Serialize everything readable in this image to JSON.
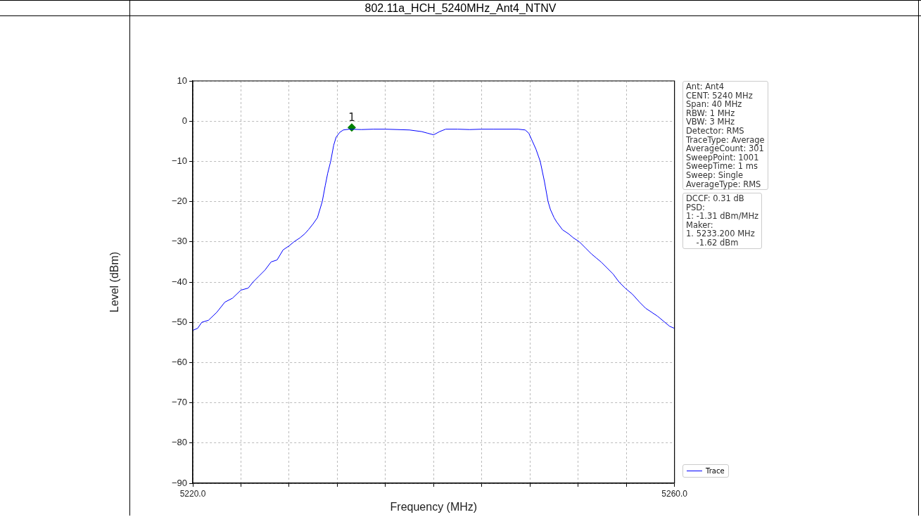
{
  "chart_data": {
    "type": "line",
    "title": "802.11a_HCH_5240MHz_Ant4_NTNV",
    "xlabel": "Frequency (MHz)",
    "ylabel": "Level (dBm)",
    "xlim": [
      5220,
      5260
    ],
    "xticks": [
      {
        "value": 5220,
        "label": "5220.0"
      },
      {
        "value": 5224,
        "label": null
      },
      {
        "value": 5228,
        "label": null
      },
      {
        "value": 5232,
        "label": null
      },
      {
        "value": 5236,
        "label": null
      },
      {
        "value": 5240,
        "label": null
      },
      {
        "value": 5244,
        "label": null
      },
      {
        "value": 5248,
        "label": null
      },
      {
        "value": 5252,
        "label": null
      },
      {
        "value": 5256,
        "label": null
      },
      {
        "value": 5260,
        "label": "5260.0"
      }
    ],
    "ylim": [
      -90,
      10
    ],
    "yticks": [
      10,
      0,
      -10,
      -20,
      -30,
      -40,
      -50,
      -60,
      -70,
      -80,
      -90
    ],
    "grid": true,
    "legend": "bottom right",
    "line_style": "solid",
    "marker": "none",
    "series": [
      {
        "name": "Trace",
        "color": "#0000ff",
        "x": [
          5220,
          5220.4,
          5220.75,
          5221.3,
          5222,
          5222.66,
          5223.3,
          5224,
          5224.6,
          5225,
          5225.5,
          5226,
          5226.5,
          5227,
          5227.5,
          5228,
          5228.4,
          5228.9,
          5229.3,
          5229.6,
          5230,
          5230.35,
          5230.55,
          5230.75,
          5231,
          5231.2,
          5231.45,
          5231.7,
          5231.9,
          5232.2,
          5232.5,
          5233,
          5234,
          5235,
          5236,
          5237,
          5238,
          5239,
          5239.5,
          5240,
          5240.5,
          5241,
          5242,
          5243,
          5244,
          5245,
          5246,
          5247,
          5247.6,
          5247.9,
          5248.2,
          5248.5,
          5248.85,
          5249.2,
          5249.5,
          5249.7,
          5250,
          5250.2,
          5250.7,
          5251.2,
          5251.6,
          5252.1,
          5252.6,
          5253.1,
          5253.5,
          5253.9,
          5254.4,
          5254.9,
          5255.4,
          5255.9,
          5256.5,
          5257.1,
          5257.6,
          5258.1,
          5258.6,
          5259.2,
          5259.6,
          5260
        ],
        "values": [
          -52,
          -51.5,
          -50,
          -49.5,
          -47.5,
          -45,
          -44,
          -42,
          -41.5,
          -40,
          -38.5,
          -37,
          -35,
          -34.5,
          -32,
          -31,
          -30,
          -29,
          -28,
          -27,
          -25.5,
          -24,
          -22,
          -20,
          -16,
          -13,
          -10,
          -6,
          -4,
          -2.8,
          -2.2,
          -2,
          -2.1,
          -2,
          -2,
          -2.1,
          -2.2,
          -2.6,
          -3,
          -3.4,
          -2.6,
          -2,
          -2,
          -2.1,
          -2,
          -2,
          -2,
          -2,
          -2.2,
          -3,
          -5,
          -7,
          -10,
          -15,
          -20,
          -22,
          -24,
          -25,
          -27,
          -28,
          -29,
          -30,
          -31.5,
          -33,
          -34,
          -35,
          -36.5,
          -38,
          -40,
          -41.5,
          -43,
          -45,
          -46.5,
          -47.5,
          -48.5,
          -50,
          -51,
          -51.5
        ]
      },
      {
        "color": "#008000",
        "type": "scatter",
        "marker": "diamond",
        "x": [
          5233.2
        ],
        "values": [
          -1.6
        ]
      }
    ],
    "annotations": [
      {
        "text": "1",
        "x": 5233.2,
        "y": -1.6
      },
      "Ant: Ant4\nCENT: 5240 MHz\nSpan: 40 MHz\nRBW: 1 MHz\nVBW: 3 MHz\nDetector: RMS\nTraceType: Average\nAverageCount: 301\nSweepPoint: 1001\nSweepTime: 1 ms\nSweep: Single\nAverageType: RMS",
      "DCCF: 0.31 dB\nPSD:\n1: -1.31 dBm/MHz\nMaker:\n1. 5233.200 MHz\n    -1.62 dBm"
    ]
  }
}
